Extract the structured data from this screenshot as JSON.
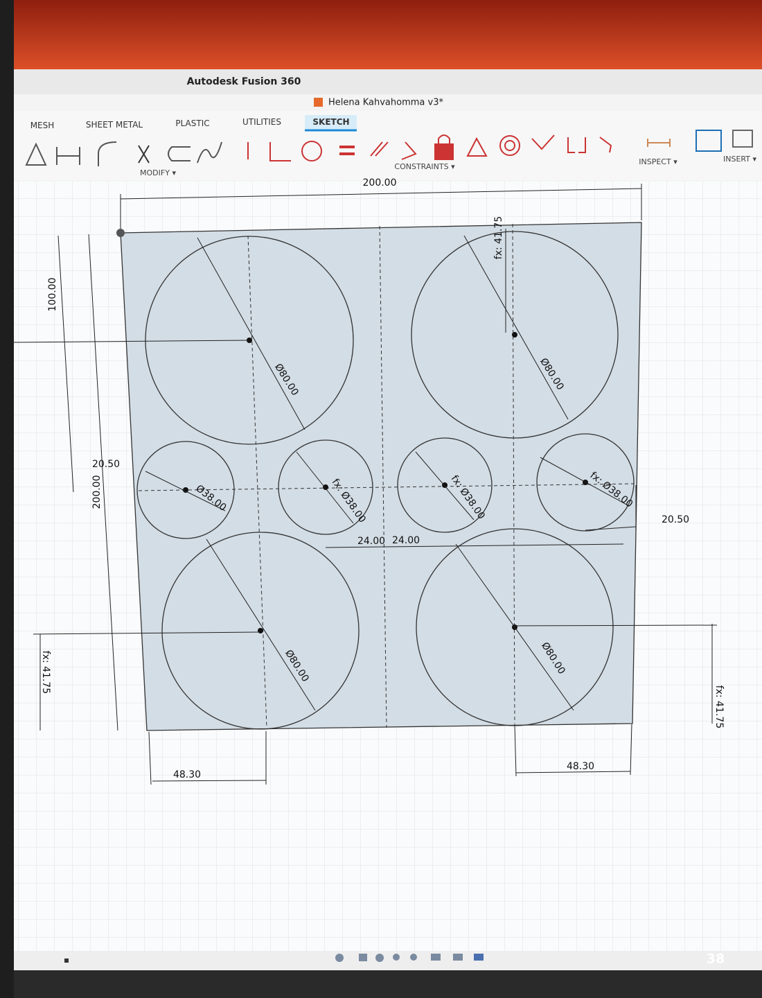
{
  "window": {
    "title": "Autodesk Fusion 360"
  },
  "document": {
    "title": "Helena Kahvahomma v3*"
  },
  "toolbar": {
    "tabs": [
      "MESH",
      "SHEET METAL",
      "PLASTIC",
      "UTILITIES",
      "SKETCH"
    ],
    "menus": [
      "MODIFY ▾",
      "CONSTRAINTS ▾",
      "INSPECT ▾",
      "INSERT ▾"
    ]
  },
  "sketch": {
    "dimensions": [
      "200.00",
      "100.00",
      "200.00",
      "20.50",
      "Ø38.00",
      "fx: Ø38.00",
      "fx: Ø38.00",
      "fx: Ø38.00",
      "Ø80.00",
      "Ø80.00",
      "Ø80.00",
      "Ø80.00",
      "fx: 41.75",
      "fx: 41.75",
      "fx: 41.75",
      "24.00",
      "24.00",
      "20.50",
      "48.30",
      "48.30"
    ]
  },
  "page_number": "38"
}
